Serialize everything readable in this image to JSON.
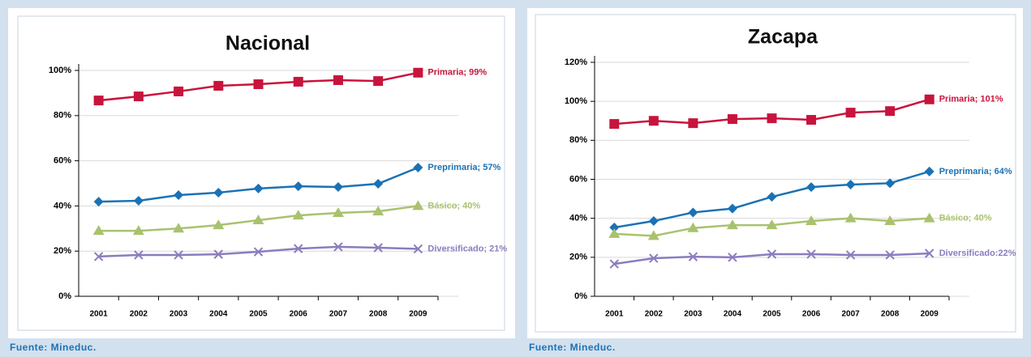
{
  "chart_data": [
    {
      "type": "line",
      "title": "Nacional",
      "source": "Fuente: Mineduc.",
      "categories": [
        "2001",
        "2002",
        "2003",
        "2004",
        "2005",
        "2006",
        "2007",
        "2008",
        "2009"
      ],
      "ylim": [
        0,
        100
      ],
      "yticks": [
        {
          "value": 0,
          "label": "0%"
        },
        {
          "value": 20,
          "label": "20%"
        },
        {
          "value": 40,
          "label": "40%"
        },
        {
          "value": 60,
          "label": "60%"
        },
        {
          "value": 80,
          "label": "80%"
        },
        {
          "value": 100,
          "label": "100%"
        }
      ],
      "grid": true,
      "series": [
        {
          "color": "#c8143c",
          "marker": "square",
          "values": [
            86.7,
            88.5,
            90.7,
            93.2,
            93.9,
            95,
            95.7,
            95.3,
            99
          ],
          "value_labels": [
            null,
            null,
            null,
            null,
            null,
            null,
            null,
            null,
            "Primaria; 99%"
          ]
        },
        {
          "color": "#1a72b5",
          "marker": "diamond",
          "values": [
            41.9,
            42.3,
            44.8,
            45.9,
            47.7,
            48.7,
            48.4,
            49.8,
            57
          ],
          "value_labels": [
            null,
            null,
            null,
            null,
            null,
            null,
            null,
            null,
            "Preprimaria; 57%"
          ]
        },
        {
          "color": "#a9c26e",
          "marker": "triangle",
          "values": [
            29,
            29,
            30,
            31.5,
            33.7,
            35.8,
            36.9,
            37.6,
            40
          ],
          "value_labels": [
            null,
            null,
            null,
            null,
            null,
            null,
            null,
            null,
            "Básico; 40%"
          ]
        },
        {
          "color": "#8c7cbe",
          "marker": "x",
          "values": [
            17.6,
            18.3,
            18.3,
            18.6,
            19.7,
            21.1,
            21.9,
            21.5,
            21
          ],
          "value_labels": [
            null,
            null,
            null,
            null,
            null,
            null,
            null,
            null,
            "Diversificado; 21%"
          ]
        }
      ]
    },
    {
      "type": "line",
      "title": "Zacapa",
      "source": "Fuente: Mineduc.",
      "categories": [
        "2001",
        "2002",
        "2003",
        "2004",
        "2005",
        "2006",
        "2007",
        "2008",
        "2009"
      ],
      "ylim": [
        0,
        120
      ],
      "yticks": [
        {
          "value": 0,
          "label": "0%"
        },
        {
          "value": 20,
          "label": "20%"
        },
        {
          "value": 40,
          "label": "40%"
        },
        {
          "value": 60,
          "label": "60%"
        },
        {
          "value": 80,
          "label": "80%"
        },
        {
          "value": 100,
          "label": "100%"
        },
        {
          "value": 120,
          "label": "120%"
        }
      ],
      "grid": true,
      "series": [
        {
          "color": "#c8143c",
          "marker": "square",
          "values": [
            88.4,
            90,
            88.8,
            90.9,
            91.3,
            90.5,
            94.2,
            95,
            101
          ],
          "value_labels": [
            null,
            null,
            null,
            null,
            null,
            null,
            null,
            null,
            "Primaria; 101%"
          ]
        },
        {
          "color": "#1a72b5",
          "marker": "diamond",
          "values": [
            35.3,
            38.6,
            43,
            45,
            51,
            56,
            57.3,
            58,
            64
          ],
          "value_labels": [
            null,
            null,
            null,
            null,
            null,
            null,
            null,
            null,
            "Preprimaria; 64%"
          ]
        },
        {
          "color": "#a9c26e",
          "marker": "triangle",
          "values": [
            32,
            31,
            35,
            36.5,
            36.5,
            38.6,
            40,
            38.6,
            40
          ],
          "value_labels": [
            null,
            null,
            null,
            null,
            null,
            null,
            null,
            null,
            "Básico; 40%"
          ]
        },
        {
          "color": "#8c7cbe",
          "marker": "x",
          "values": [
            16.6,
            19.5,
            20.3,
            20,
            21.6,
            21.6,
            21.2,
            21.2,
            22
          ],
          "value_labels": [
            null,
            null,
            null,
            null,
            null,
            null,
            null,
            null,
            "Diversificado:22%"
          ]
        }
      ]
    }
  ]
}
